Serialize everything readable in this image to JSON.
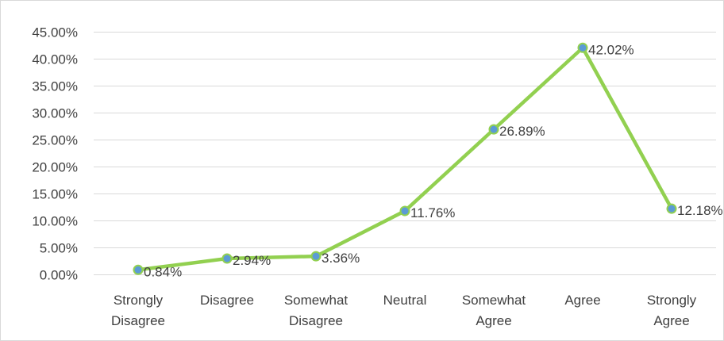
{
  "chart_data": {
    "type": "line",
    "categories": [
      [
        "Strongly",
        "Disagree"
      ],
      [
        "Disagree"
      ],
      [
        "Somewhat",
        "Disagree"
      ],
      [
        "Neutral"
      ],
      [
        "Somewhat",
        "Agree"
      ],
      [
        "Agree"
      ],
      [
        "Strongly",
        "Agree"
      ]
    ],
    "values": [
      0.84,
      2.94,
      3.36,
      11.76,
      26.89,
      42.02,
      12.18
    ],
    "data_labels": [
      "0.84%",
      "2.94%",
      "3.36%",
      "11.76%",
      "26.89%",
      "42.02%",
      "12.18%"
    ],
    "y_ticks": [
      0,
      5,
      10,
      15,
      20,
      25,
      30,
      35,
      40,
      45
    ],
    "y_tick_labels": [
      "0.00%",
      "5.00%",
      "10.00%",
      "15.00%",
      "20.00%",
      "25.00%",
      "30.00%",
      "35.00%",
      "40.00%",
      "45.00%"
    ],
    "ylim": [
      0,
      45
    ],
    "grid": true,
    "legend": "none",
    "colors": {
      "line": "#92d050",
      "marker_fill": "#5b9bd5",
      "marker_stroke": "#92d050",
      "grid": "#d9d9d9",
      "text": "#404040",
      "border": "#d9d9d9"
    }
  }
}
